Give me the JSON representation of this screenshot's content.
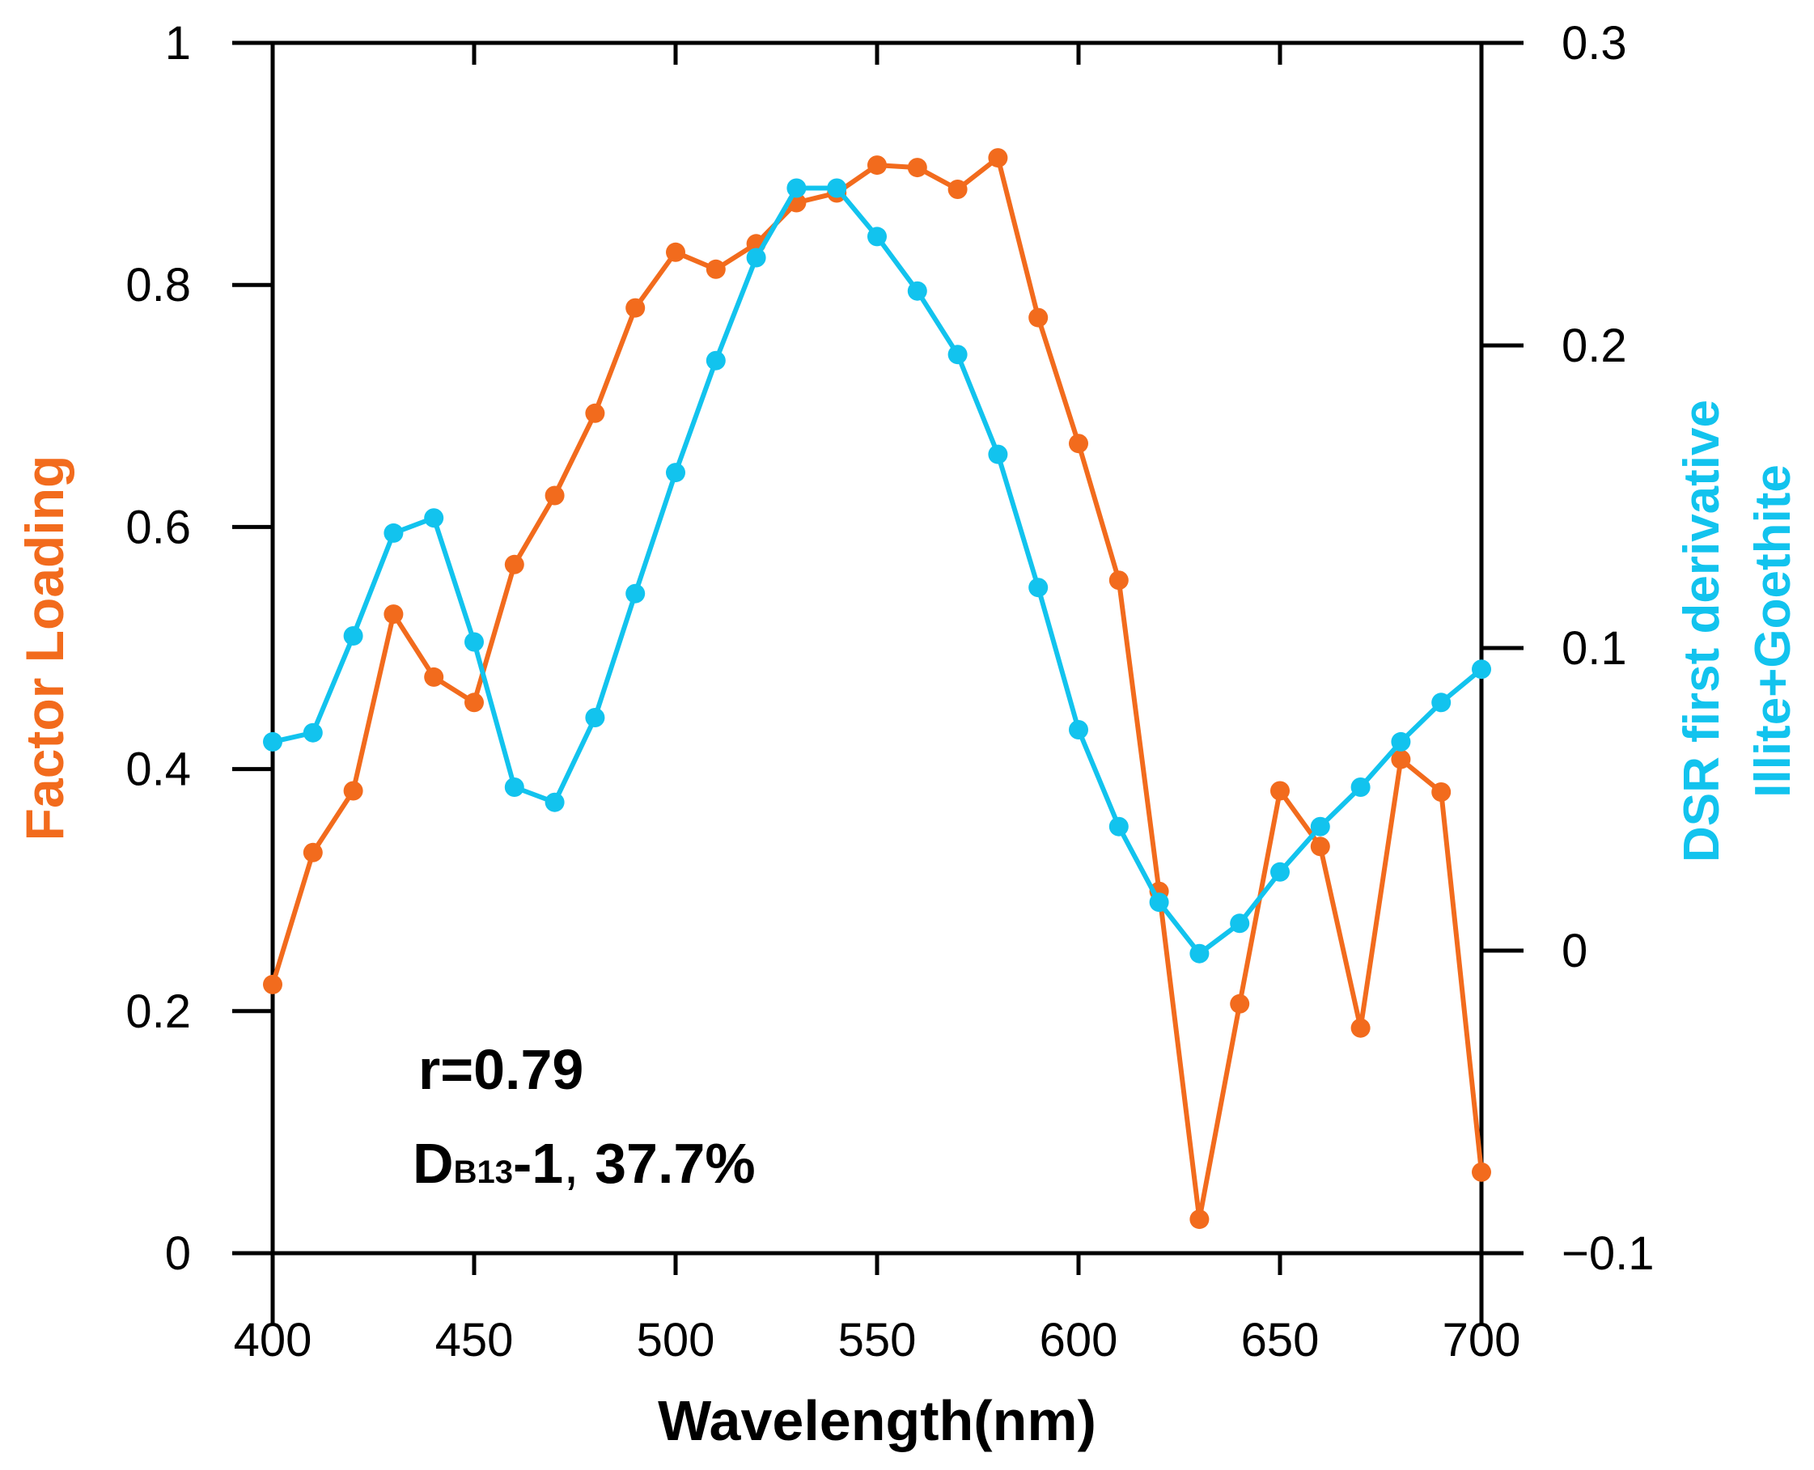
{
  "chart_data": {
    "type": "line",
    "title": "",
    "xlabel": "Wavelength(nm)",
    "ylabel": "Factor Loading",
    "y2label_line1": "DSR first derivative",
    "y2label_line2": "Illite+Goethite",
    "xlim": [
      400,
      700
    ],
    "ylim": [
      0,
      1
    ],
    "y2lim": [
      -0.1,
      0.3
    ],
    "x_ticks": [
      "400",
      "450",
      "500",
      "550",
      "600",
      "650",
      "700"
    ],
    "y_ticks": [
      "0",
      "0.2",
      "0.4",
      "0.6",
      "0.8",
      "1"
    ],
    "y2_ticks": [
      "−0.1",
      "0",
      "0.1",
      "0.2",
      "0.3"
    ],
    "x": [
      400,
      410,
      420,
      430,
      440,
      450,
      460,
      470,
      480,
      490,
      500,
      510,
      520,
      530,
      540,
      550,
      560,
      570,
      580,
      590,
      600,
      610,
      620,
      630,
      640,
      650,
      660,
      670,
      680,
      690,
      700
    ],
    "series": [
      {
        "name": "Factor Loading",
        "axis": "left",
        "color": "#F26B1D",
        "values": [
          0.222,
          0.331,
          0.382,
          0.528,
          0.476,
          0.455,
          0.569,
          0.626,
          0.694,
          0.781,
          0.827,
          0.813,
          0.834,
          0.868,
          0.876,
          0.899,
          0.897,
          0.879,
          0.905,
          0.773,
          0.669,
          0.556,
          0.299,
          0.028,
          0.206,
          0.382,
          0.336,
          0.186,
          0.408,
          0.381,
          0.067
        ]
      },
      {
        "name": "DSR first derivative Illite+Goethite",
        "axis": "right",
        "color": "#12C3EE",
        "values": [
          0.069,
          0.072,
          0.104,
          0.138,
          0.143,
          0.102,
          0.054,
          0.049,
          0.077,
          0.118,
          0.158,
          0.195,
          0.229,
          0.252,
          0.252,
          0.236,
          0.218,
          0.197,
          0.164,
          0.12,
          0.073,
          0.041,
          0.016,
          -0.001,
          0.009,
          0.026,
          0.041,
          0.054,
          0.069,
          0.082,
          0.093
        ]
      }
    ],
    "annotations": [
      {
        "text": "r=0.79"
      },
      {
        "main": "D",
        "subscript": "B13",
        "rest": "-1",
        "comma": ",",
        "tail": " 37.7%"
      }
    ]
  }
}
